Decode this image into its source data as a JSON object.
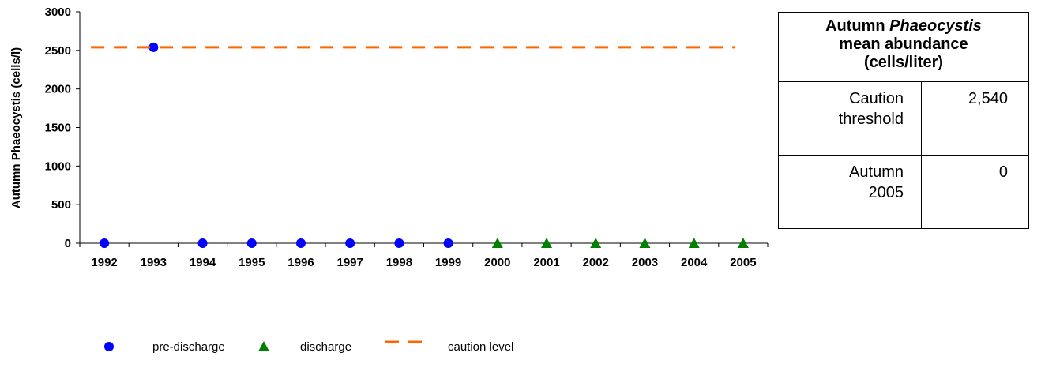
{
  "chart_data": {
    "type": "scatter",
    "categories": [
      "1992",
      "1993",
      "1994",
      "1995",
      "1996",
      "1997",
      "1998",
      "1999",
      "2000",
      "2001",
      "2002",
      "2003",
      "2004",
      "2005"
    ],
    "ylabel": "Autumn Phaeocystis (cells/l)",
    "xlabel": "",
    "ylim": [
      0,
      3000
    ],
    "yticks": [
      0,
      500,
      1000,
      1500,
      2000,
      2500,
      3000
    ],
    "grid": false,
    "series": [
      {
        "name": "pre-discharge",
        "marker": "circle",
        "color": "#0000ff",
        "points": [
          [
            "1992",
            0
          ],
          [
            "1993",
            2540
          ],
          [
            "1994",
            0
          ],
          [
            "1995",
            0
          ],
          [
            "1996",
            0
          ],
          [
            "1997",
            0
          ],
          [
            "1998",
            0
          ],
          [
            "1999",
            0
          ]
        ]
      },
      {
        "name": "discharge",
        "marker": "triangle",
        "color": "#008000",
        "points": [
          [
            "2000",
            0
          ],
          [
            "2001",
            0
          ],
          [
            "2002",
            0
          ],
          [
            "2003",
            0
          ],
          [
            "2004",
            0
          ],
          [
            "2005",
            0
          ]
        ]
      },
      {
        "name": "caution level",
        "marker": "dashed-line",
        "color": "#ff6600",
        "value": 2540,
        "from": "1992",
        "to": "2005"
      }
    ],
    "legend_position": "bottom"
  },
  "table": {
    "header_prefix": "Autumn ",
    "header_italic": "Phaeocystis",
    "header_line2": "mean abundance",
    "header_line3": "(cells/liter)",
    "rows": [
      {
        "label_line1": "Caution",
        "label_line2": "threshold",
        "value": "2,540"
      },
      {
        "label_line1": "Autumn",
        "label_line2": "2005",
        "value": "0"
      }
    ]
  }
}
